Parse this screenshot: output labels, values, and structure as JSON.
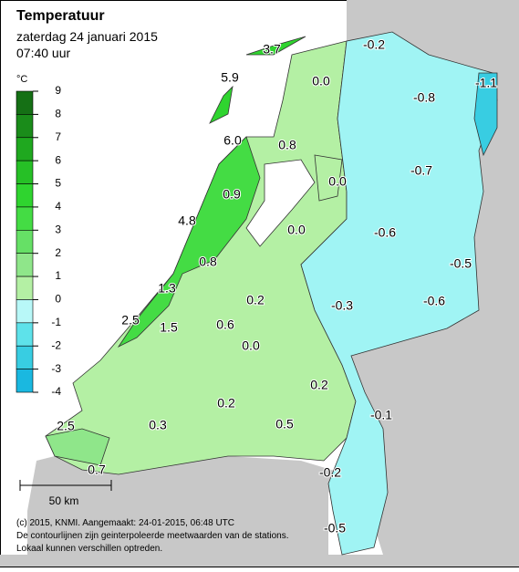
{
  "header": {
    "title": "Temperatuur",
    "date": "zaterdag 24 januari 2015",
    "time": "07:40 uur"
  },
  "legend": {
    "unit": "°C",
    "ticks": [
      9,
      8,
      7,
      6,
      5,
      4,
      3,
      2,
      1,
      0,
      -1,
      -2,
      -3,
      -4
    ],
    "colors": [
      "#157015",
      "#1a8c1a",
      "#1fa81f",
      "#26c026",
      "#2fd42f",
      "#44dc44",
      "#66e066",
      "#8fe68a",
      "#b4f0a4",
      "#b8f8f8",
      "#5ee2ea",
      "#38cde2",
      "#1ab8e0"
    ]
  },
  "stations": [
    {
      "text": "3.7"
    },
    {
      "text": "-0.2"
    },
    {
      "text": "5.9"
    },
    {
      "text": "0.0"
    },
    {
      "text": "-1.1"
    },
    {
      "text": "-0.8"
    },
    {
      "text": "6.0"
    },
    {
      "text": "0.8"
    },
    {
      "text": "-0.7"
    },
    {
      "text": "0.0"
    },
    {
      "text": "0.9"
    },
    {
      "text": "4.8"
    },
    {
      "text": "0.0"
    },
    {
      "text": "-0.6"
    },
    {
      "text": "-0.5"
    },
    {
      "text": "0.8"
    },
    {
      "text": "1.3"
    },
    {
      "text": "0.2"
    },
    {
      "text": "-0.3"
    },
    {
      "text": "-0.6"
    },
    {
      "text": "2.5"
    },
    {
      "text": "1.5"
    },
    {
      "text": "0.6"
    },
    {
      "text": "0.0"
    },
    {
      "text": "0.2"
    },
    {
      "text": "0.2"
    },
    {
      "text": "-0.1"
    },
    {
      "text": "2.5"
    },
    {
      "text": "0.3"
    },
    {
      "text": "0.5"
    },
    {
      "text": "0.7"
    },
    {
      "text": "-0.2"
    },
    {
      "text": "-0.5"
    }
  ],
  "scale": {
    "label": "50 km"
  },
  "footer": {
    "lines": [
      "(c) 2015, KNMI. Aangemaakt: 24-01-2015, 06:48 UTC",
      "De contourlijnen zijn geinterpoleerde meetwaarden van de stations.",
      "Lokaal kunnen verschillen optreden."
    ]
  }
}
